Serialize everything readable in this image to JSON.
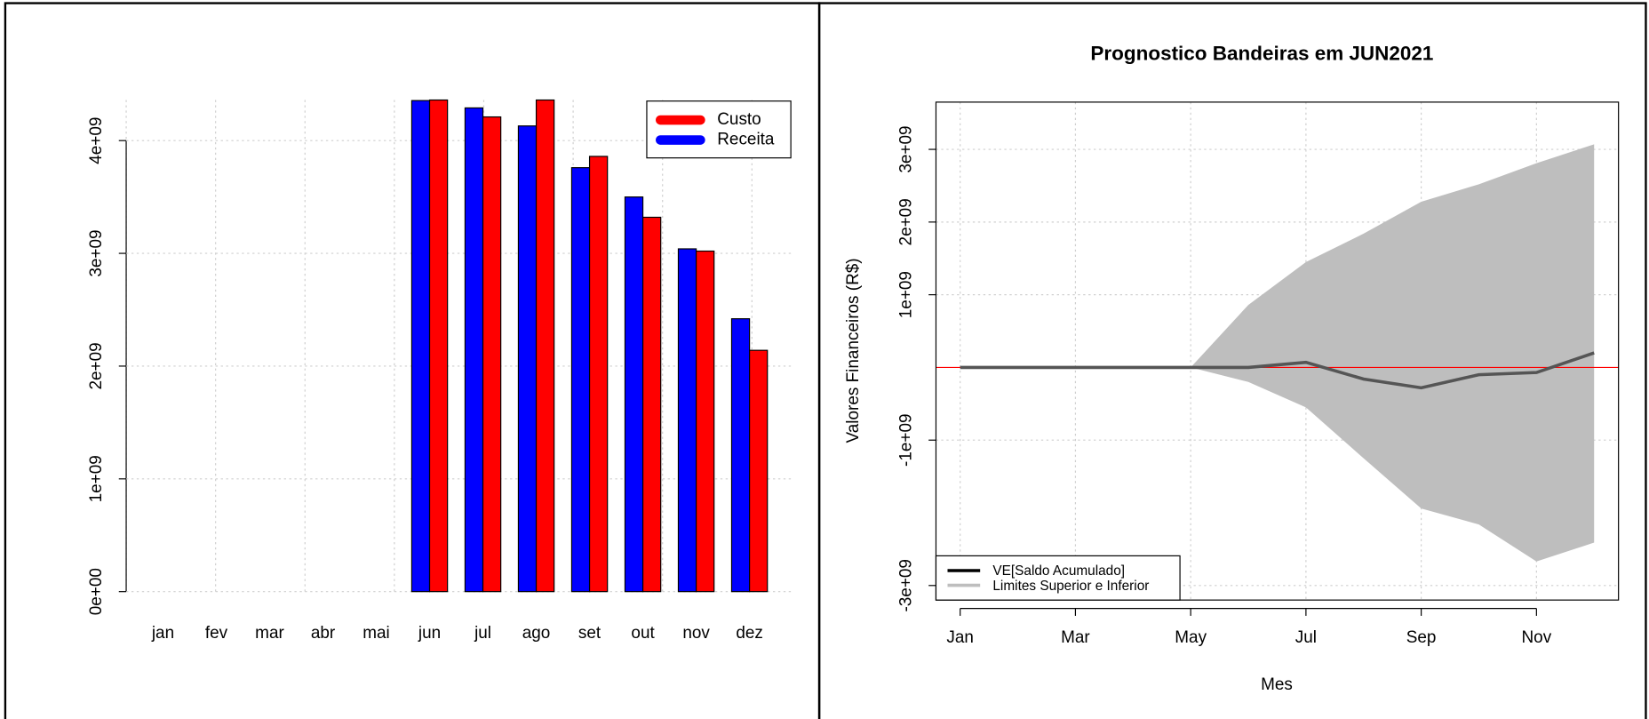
{
  "chart_data": [
    {
      "type": "bar",
      "categories": [
        "jan",
        "fev",
        "mar",
        "abr",
        "mai",
        "jun",
        "jul",
        "ago",
        "set",
        "out",
        "nov",
        "dez"
      ],
      "series": [
        {
          "name": "Receita",
          "color": "#0000ff",
          "values": [
            0,
            0,
            0,
            0,
            0,
            4355000000,
            4290000000,
            4130000000,
            3760000000,
            3500000000,
            3040000000,
            2420000000
          ]
        },
        {
          "name": "Custo",
          "color": "#ff0000",
          "values": [
            0,
            0,
            0,
            0,
            0,
            4360000000,
            4210000000,
            4360000000,
            3860000000,
            3320000000,
            3020000000,
            2140000000
          ]
        }
      ],
      "ylim": [
        0,
        4360000000
      ],
      "yticks": [
        {
          "value": 0,
          "label": "0e+00"
        },
        {
          "value": 1000000000,
          "label": "1e+09"
        },
        {
          "value": 2000000000,
          "label": "2e+09"
        },
        {
          "value": 3000000000,
          "label": "3e+09"
        },
        {
          "value": 4000000000,
          "label": "4e+09"
        }
      ],
      "grid": true,
      "legend": "top-right"
    },
    {
      "type": "line",
      "title": "Prognostico Bandeiras em JUN2021",
      "x_label": "Mes",
      "y_label": "Valores Financeiros (R$)",
      "categories": [
        "Jan",
        null,
        "Mar",
        null,
        "May",
        null,
        "Jul",
        null,
        "Sep",
        null,
        "Nov",
        null
      ],
      "series": [
        {
          "name": "VE[Saldo Acumulado]",
          "color": "#555555",
          "values": [
            0,
            0,
            0,
            0,
            0,
            0,
            70000000,
            -160000000,
            -280000000,
            -100000000,
            -70000000,
            200000000
          ]
        }
      ],
      "band": {
        "name": "Limites Superior e Inferior",
        "color": "#bebebe",
        "upper": [
          0,
          0,
          0,
          0,
          0,
          860000000,
          1450000000,
          1840000000,
          2280000000,
          2520000000,
          2810000000,
          3070000000
        ],
        "lower": [
          0,
          0,
          0,
          0,
          0,
          -200000000,
          -550000000,
          -1250000000,
          -1940000000,
          -2160000000,
          -2670000000,
          -2410000000
        ]
      },
      "hline": 0,
      "hline_color": "#ff0000",
      "ylim": [
        -3200000000,
        3650000000
      ],
      "yticks": [
        {
          "value": -3000000000,
          "label": "-3e+09"
        },
        {
          "value": -1000000000,
          "label": "-1e+09"
        },
        {
          "value": 1000000000,
          "label": "1e+09"
        },
        {
          "value": 2000000000,
          "label": "2e+09"
        },
        {
          "value": 3000000000,
          "label": "3e+09"
        }
      ],
      "grid": true,
      "legend": "bottom-left"
    }
  ]
}
